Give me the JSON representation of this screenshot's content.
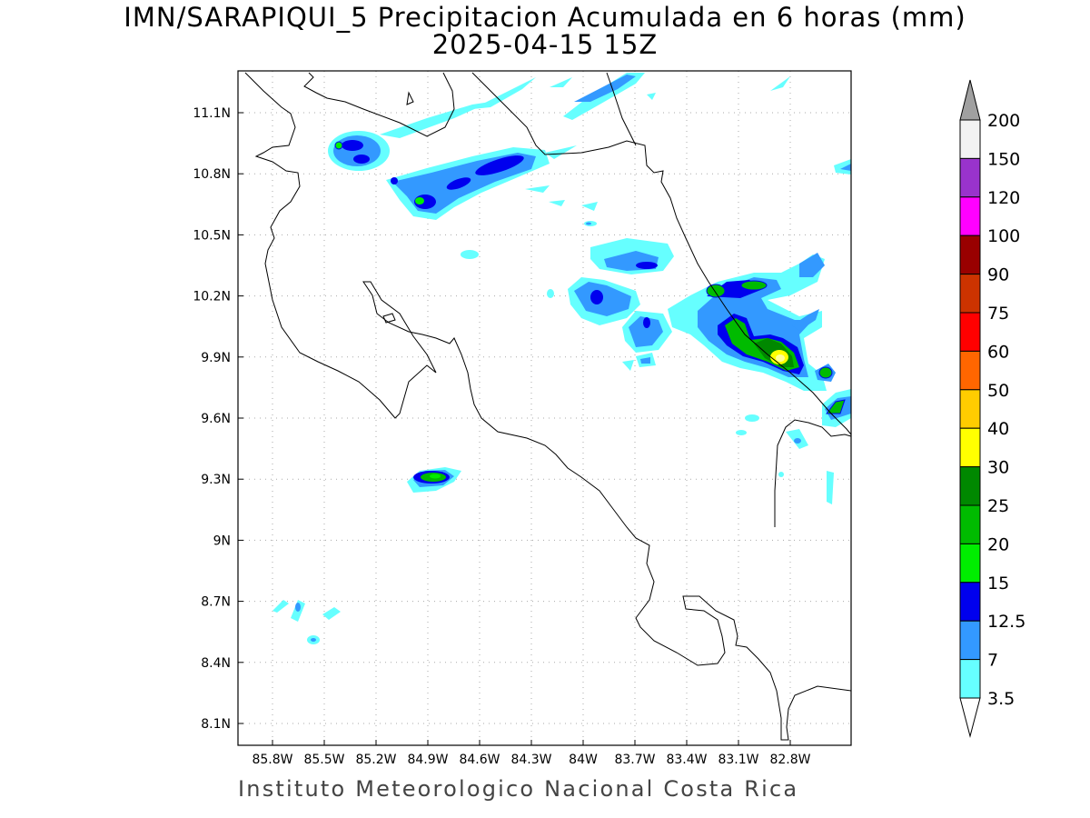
{
  "title_line1": "IMN/SARAPIQUI_5 Precipitacion Acumulada en 6 horas (mm)",
  "title_line2": "2025-04-15 15Z",
  "credit": "Instituto Meteorologico Nacional Costa Rica",
  "map": {
    "lon_range": [
      -86.0,
      -83.0
    ],
    "lat_range": [
      8.0,
      11.3
    ],
    "lon_labels": [
      "85.8W",
      "85.5W",
      "85.2W",
      "84.9W",
      "84.6W",
      "84.3W",
      "84W",
      "83.7W",
      "83.4W",
      "83.1W",
      "82.8W"
    ],
    "lat_labels": [
      "11.1N",
      "10.8N",
      "10.5N",
      "10.2N",
      "9.9N",
      "9.6N",
      "9.3N",
      "9N",
      "8.7N",
      "8.4N",
      "8.1N"
    ],
    "grid": "dotted"
  },
  "legend": {
    "labels": [
      "200",
      "150",
      "120",
      "100",
      "90",
      "75",
      "60",
      "50",
      "40",
      "30",
      "25",
      "20",
      "15",
      "12.5",
      "7",
      "3.5"
    ],
    "colors": [
      "#f2f2f2",
      "#9933cc",
      "#ff00ff",
      "#990000",
      "#cc3300",
      "#ff0000",
      "#ff6600",
      "#ffcc00",
      "#ffff00",
      "#008800",
      "#00bb00",
      "#00ee00",
      "#0000ee",
      "#3399ff",
      "#66ffff"
    ],
    "top_arrow_color": "#a0a0a0",
    "bottom_arrow_color": "#ffffff"
  }
}
